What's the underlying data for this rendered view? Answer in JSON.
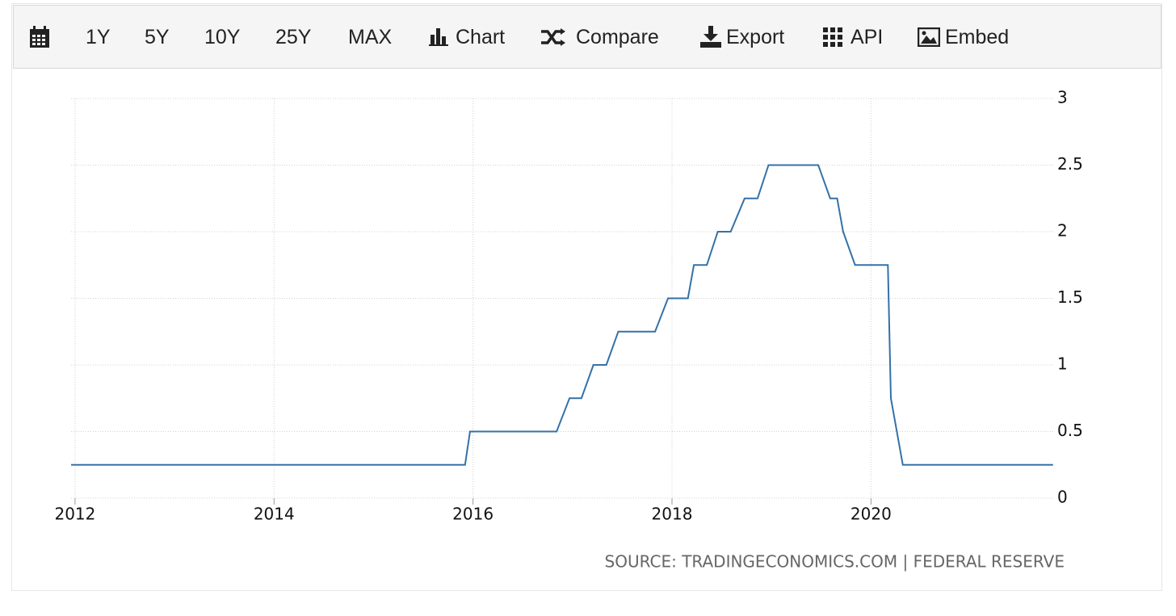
{
  "toolbar": {
    "buttons": [
      "1Y",
      "5Y",
      "10Y",
      "25Y",
      "MAX",
      "Chart",
      "Compare",
      "Export",
      "API",
      "Embed"
    ]
  },
  "chart_data": {
    "type": "line",
    "x": [
      2011.96,
      2015.92,
      2015.97,
      2016.84,
      2016.97,
      2017.09,
      2017.21,
      2017.34,
      2017.46,
      2017.83,
      2017.96,
      2018.16,
      2018.22,
      2018.35,
      2018.46,
      2018.59,
      2018.73,
      2018.86,
      2018.97,
      2019.47,
      2019.59,
      2019.66,
      2019.72,
      2019.84,
      2020.17,
      2020.2,
      2020.32,
      2021.83
    ],
    "values": [
      0.25,
      0.25,
      0.5,
      0.5,
      0.75,
      0.75,
      1.0,
      1.0,
      1.25,
      1.25,
      1.5,
      1.5,
      1.75,
      1.75,
      2.0,
      2.0,
      2.25,
      2.25,
      2.5,
      2.5,
      2.25,
      2.25,
      2.0,
      1.75,
      1.75,
      0.75,
      0.25,
      0.25
    ],
    "color": "#3471a8",
    "xlim": [
      2011.96,
      2021.84
    ],
    "xticks": [
      2012,
      2014,
      2016,
      2018,
      2020
    ],
    "ylim": [
      0,
      3
    ],
    "yticks": [
      0,
      0.5,
      1,
      1.5,
      2,
      2.5,
      3
    ],
    "grid": true,
    "source": "SOURCE: TRADINGECONOMICS.COM | FEDERAL RESERVE"
  }
}
